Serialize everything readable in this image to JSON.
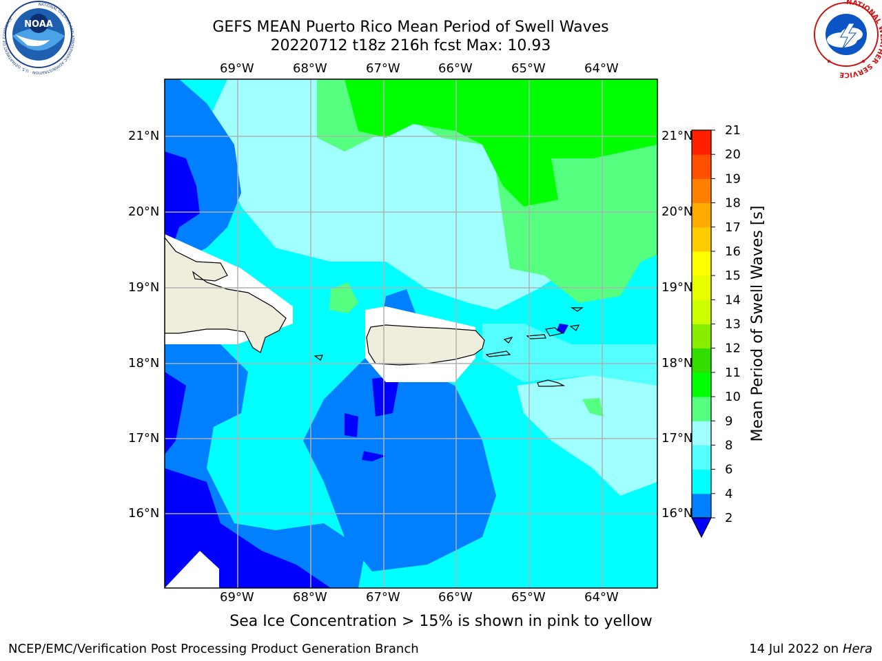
{
  "title_line1": "GEFS MEAN Puerto Rico Mean Period of Swell Waves",
  "title_line2": "20220712 t18z 216h fcst   Max: 10.93",
  "colorbar": {
    "label": "Mean Period of Swell Waves [s]",
    "ticks": [
      "2",
      "4",
      "6",
      "8",
      "9",
      "10",
      "11",
      "12",
      "13",
      "14",
      "15",
      "16",
      "17",
      "18",
      "19",
      "20",
      "21"
    ],
    "colors": [
      "#0000ff",
      "#0080ff",
      "#00ffff",
      "#55ffff",
      "#a0ffff",
      "#55ff80",
      "#00ff00",
      "#33dd00",
      "#88ee00",
      "#ccff00",
      "#e8ff00",
      "#ffff00",
      "#ffcc00",
      "#ffaa00",
      "#ff8000",
      "#ff5000",
      "#ff2000",
      "#ff0000"
    ]
  },
  "lon_labels": [
    "69°W",
    "68°W",
    "67°W",
    "66°W",
    "65°W",
    "64°W"
  ],
  "lat_labels": [
    "21°N",
    "20°N",
    "19°N",
    "18°N",
    "17°N",
    "16°N"
  ],
  "sea_ice_note": "Sea Ice Concentration > 15% is shown in pink to yellow",
  "footer_left": "NCEP/EMC/Verification Post Processing Product Generation Branch",
  "footer_date": "14 Jul 2022 on",
  "footer_machine": "Hera",
  "logos": {
    "noaa": "NOAA",
    "noaa_ring": "NATIONAL OCEANIC AND ATMOSPHERIC ADMINISTRATION · U.S. DEPARTMENT OF COMMERCE",
    "nws_ring": "NATIONAL WEATHER SERVICE"
  }
}
